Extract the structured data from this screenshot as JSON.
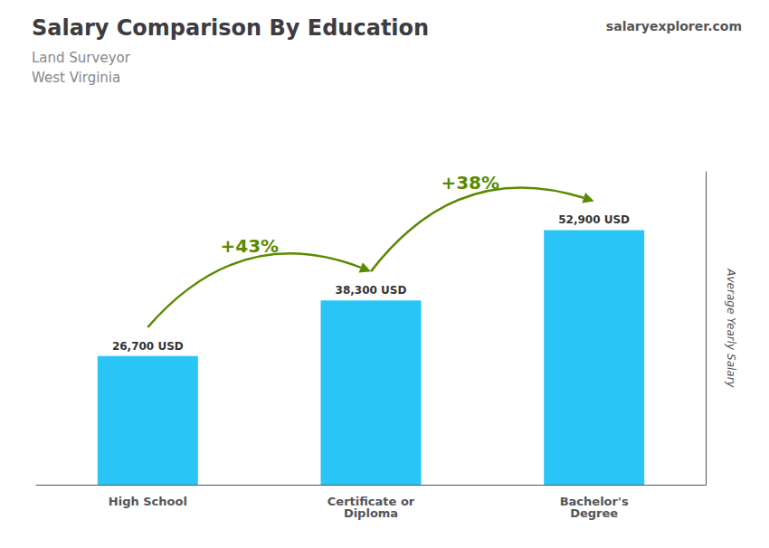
{
  "chart_data": {
    "type": "bar",
    "title": "Salary Comparison By Education",
    "subtitle": [
      "Land Surveyor",
      "West Virginia"
    ],
    "source": "salaryexplorer.com",
    "categories": [
      "High School",
      "Certificate or\nDiploma",
      "Bachelor's\nDegree"
    ],
    "values": [
      26700,
      38300,
      52900
    ],
    "value_labels": [
      "26,700 USD",
      "38,300 USD",
      "52,900 USD"
    ],
    "data_labels": true,
    "color": "#29c5f6",
    "ylabel": "Average Yearly Salary",
    "ylim": [
      0,
      65000
    ],
    "tick_labels": "x",
    "grid": false,
    "annotations": [
      "+43%",
      "+38%"
    ]
  }
}
